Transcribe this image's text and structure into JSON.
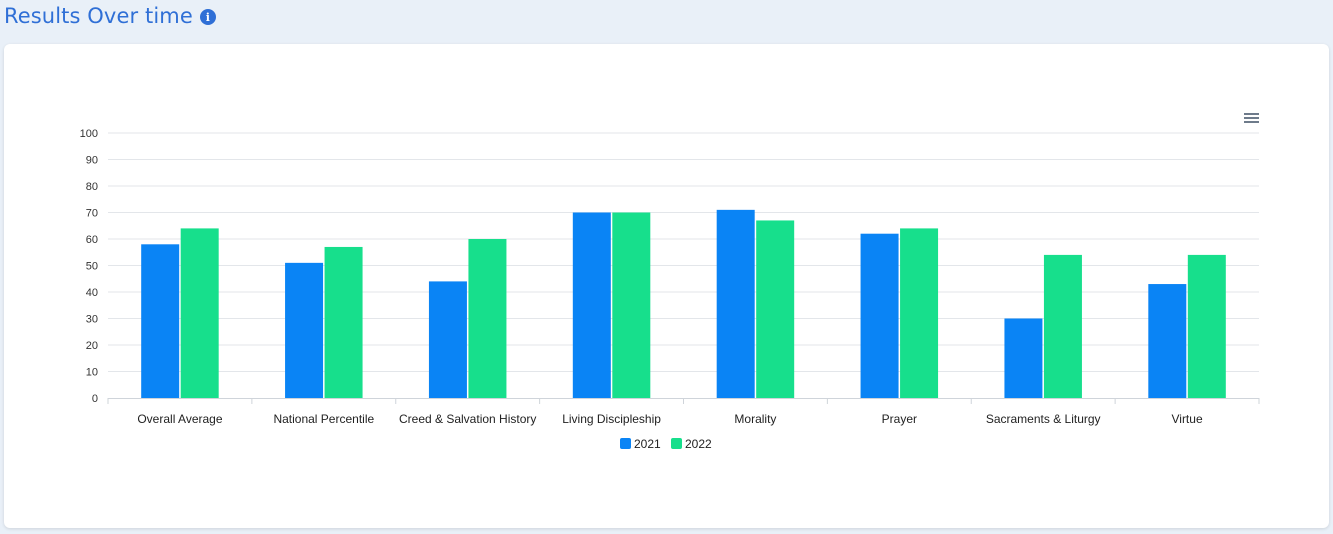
{
  "header": {
    "title": "Results Over time",
    "info_icon": "info-icon"
  },
  "toolbar": {
    "menu_icon": "hamburger-menu-icon"
  },
  "colors": {
    "accent": "#2f6fd6",
    "series_2021": "#0a84f5",
    "series_2022": "#17df8c"
  },
  "chart_data": {
    "type": "bar",
    "categories": [
      "Overall Average",
      "National Percentile",
      "Creed & Salvation History",
      "Living Discipleship",
      "Morality",
      "Prayer",
      "Sacraments & Liturgy",
      "Virtue"
    ],
    "series": [
      {
        "name": "2021",
        "color": "#0a84f5",
        "values": [
          58,
          51,
          44,
          70,
          71,
          62,
          30,
          43
        ]
      },
      {
        "name": "2022",
        "color": "#17df8c",
        "values": [
          64,
          57,
          60,
          70,
          67,
          64,
          54,
          54
        ]
      }
    ],
    "yticks": [
      0,
      10,
      20,
      30,
      40,
      50,
      60,
      70,
      80,
      90,
      100
    ],
    "ylim": [
      0,
      100
    ],
    "title": "",
    "xlabel": "",
    "ylabel": "",
    "grid": true,
    "legend_position": "bottom-center"
  }
}
